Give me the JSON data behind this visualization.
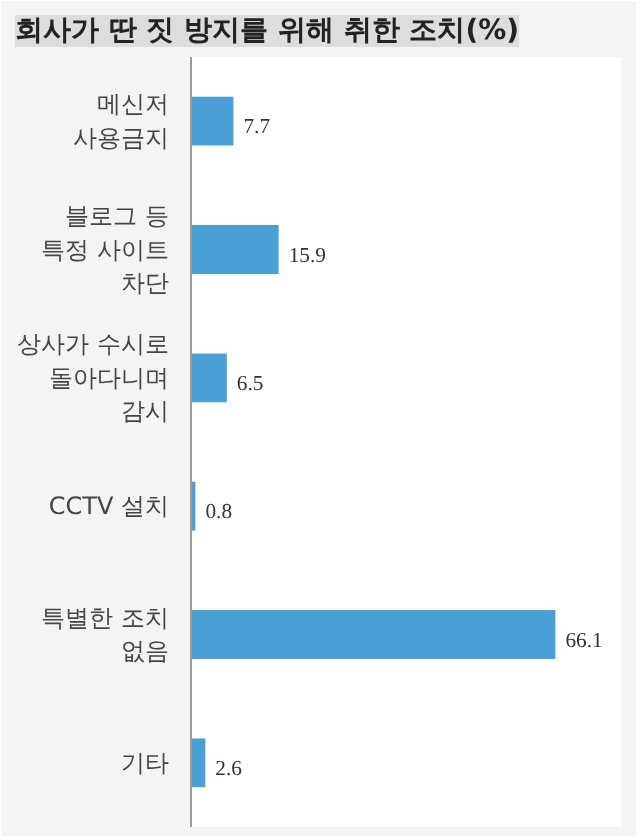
{
  "chart_data": {
    "type": "bar",
    "orientation": "horizontal",
    "title": "회사가 딴 짓 방지를 위해 취한 조치(%)",
    "categories": [
      "메신저 사용금지",
      "블로그 등 특정 사이트 차단",
      "상사가 수시로 돌아다니며 감시",
      "CCTV 설치",
      "특별한 조치 없음",
      "기타"
    ],
    "values": [
      7.7,
      15.9,
      6.5,
      0.8,
      66.1,
      2.6
    ],
    "color": "#4a9fd5",
    "data_labels": true,
    "grid": false
  }
}
